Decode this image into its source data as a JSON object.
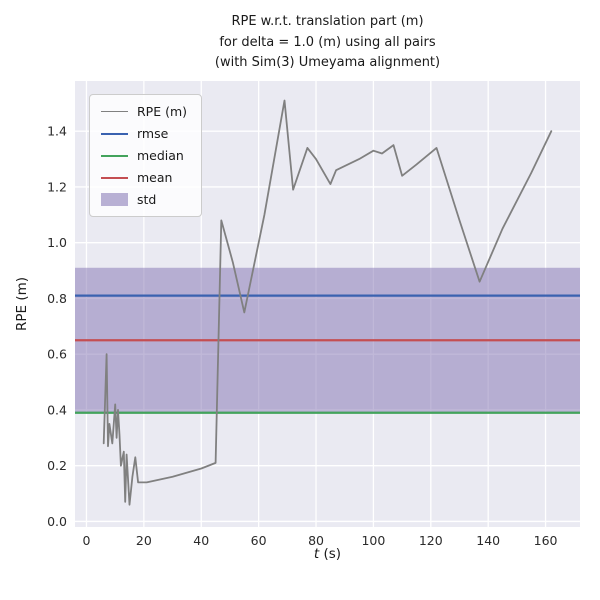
{
  "title": {
    "full": "RPE w.r.t. translation part (m)\nfor delta = 1.0 (m) using all pairs\n(with Sim(3) Umeyama alignment)"
  },
  "colors": {
    "figure_bg": "#ffffff",
    "axes_bg": "#eaeaf2",
    "grid": "#ffffff",
    "text": "#1a1a1a",
    "tick_text": "#2b2b2b"
  },
  "chart_data": {
    "type": "line",
    "title_lines": [
      "RPE w.r.t. translation part (m)",
      "for delta = 1.0 (m) using all pairs",
      "(with Sim(3) Umeyama alignment)"
    ],
    "xlabel": "t (s)",
    "xlabel_parts": {
      "var": "t",
      "rest": " (s)"
    },
    "ylabel": "RPE (m)",
    "xlim": [
      -4,
      172
    ],
    "ylim": [
      -0.02,
      1.58
    ],
    "xticks": [
      0,
      20,
      40,
      60,
      80,
      100,
      120,
      140,
      160
    ],
    "yticks": [
      0.0,
      0.2,
      0.4,
      0.6,
      0.8,
      1.0,
      1.2,
      1.4
    ],
    "grid": true,
    "legend_position": "upper left",
    "series": [
      {
        "name": "RPE (m)",
        "type": "line",
        "color": "#808080",
        "lw": 1.8,
        "x": [
          6,
          7,
          7.5,
          8,
          9,
          10,
          10.5,
          11,
          11.5,
          12,
          13,
          13.5,
          14,
          15,
          16,
          17,
          18,
          21,
          30,
          40,
          45,
          47,
          51,
          55,
          62,
          69,
          72,
          74,
          77,
          80,
          85,
          87,
          95,
          100,
          103,
          107,
          110,
          115,
          122,
          130,
          137,
          145,
          155,
          162
        ],
        "y": [
          0.28,
          0.6,
          0.27,
          0.35,
          0.28,
          0.42,
          0.3,
          0.4,
          0.31,
          0.2,
          0.25,
          0.07,
          0.24,
          0.06,
          0.16,
          0.23,
          0.14,
          0.14,
          0.16,
          0.19,
          0.21,
          1.08,
          0.93,
          0.75,
          1.1,
          1.51,
          1.19,
          1.25,
          1.34,
          1.3,
          1.21,
          1.26,
          1.3,
          1.33,
          1.32,
          1.35,
          1.24,
          1.28,
          1.34,
          1.08,
          0.86,
          1.05,
          1.25,
          1.4
        ]
      },
      {
        "name": "rmse",
        "type": "hline",
        "color": "#3a62b0",
        "lw": 2.2,
        "value": 0.81
      },
      {
        "name": "median",
        "type": "hline",
        "color": "#43a35c",
        "lw": 2.2,
        "value": 0.39
      },
      {
        "name": "mean",
        "type": "hline",
        "color": "#c44e52",
        "lw": 2.2,
        "value": 0.65
      },
      {
        "name": "std",
        "type": "band",
        "color": "#8172b2",
        "alpha": 0.5,
        "ymin": 0.39,
        "ymax": 0.91
      }
    ]
  }
}
